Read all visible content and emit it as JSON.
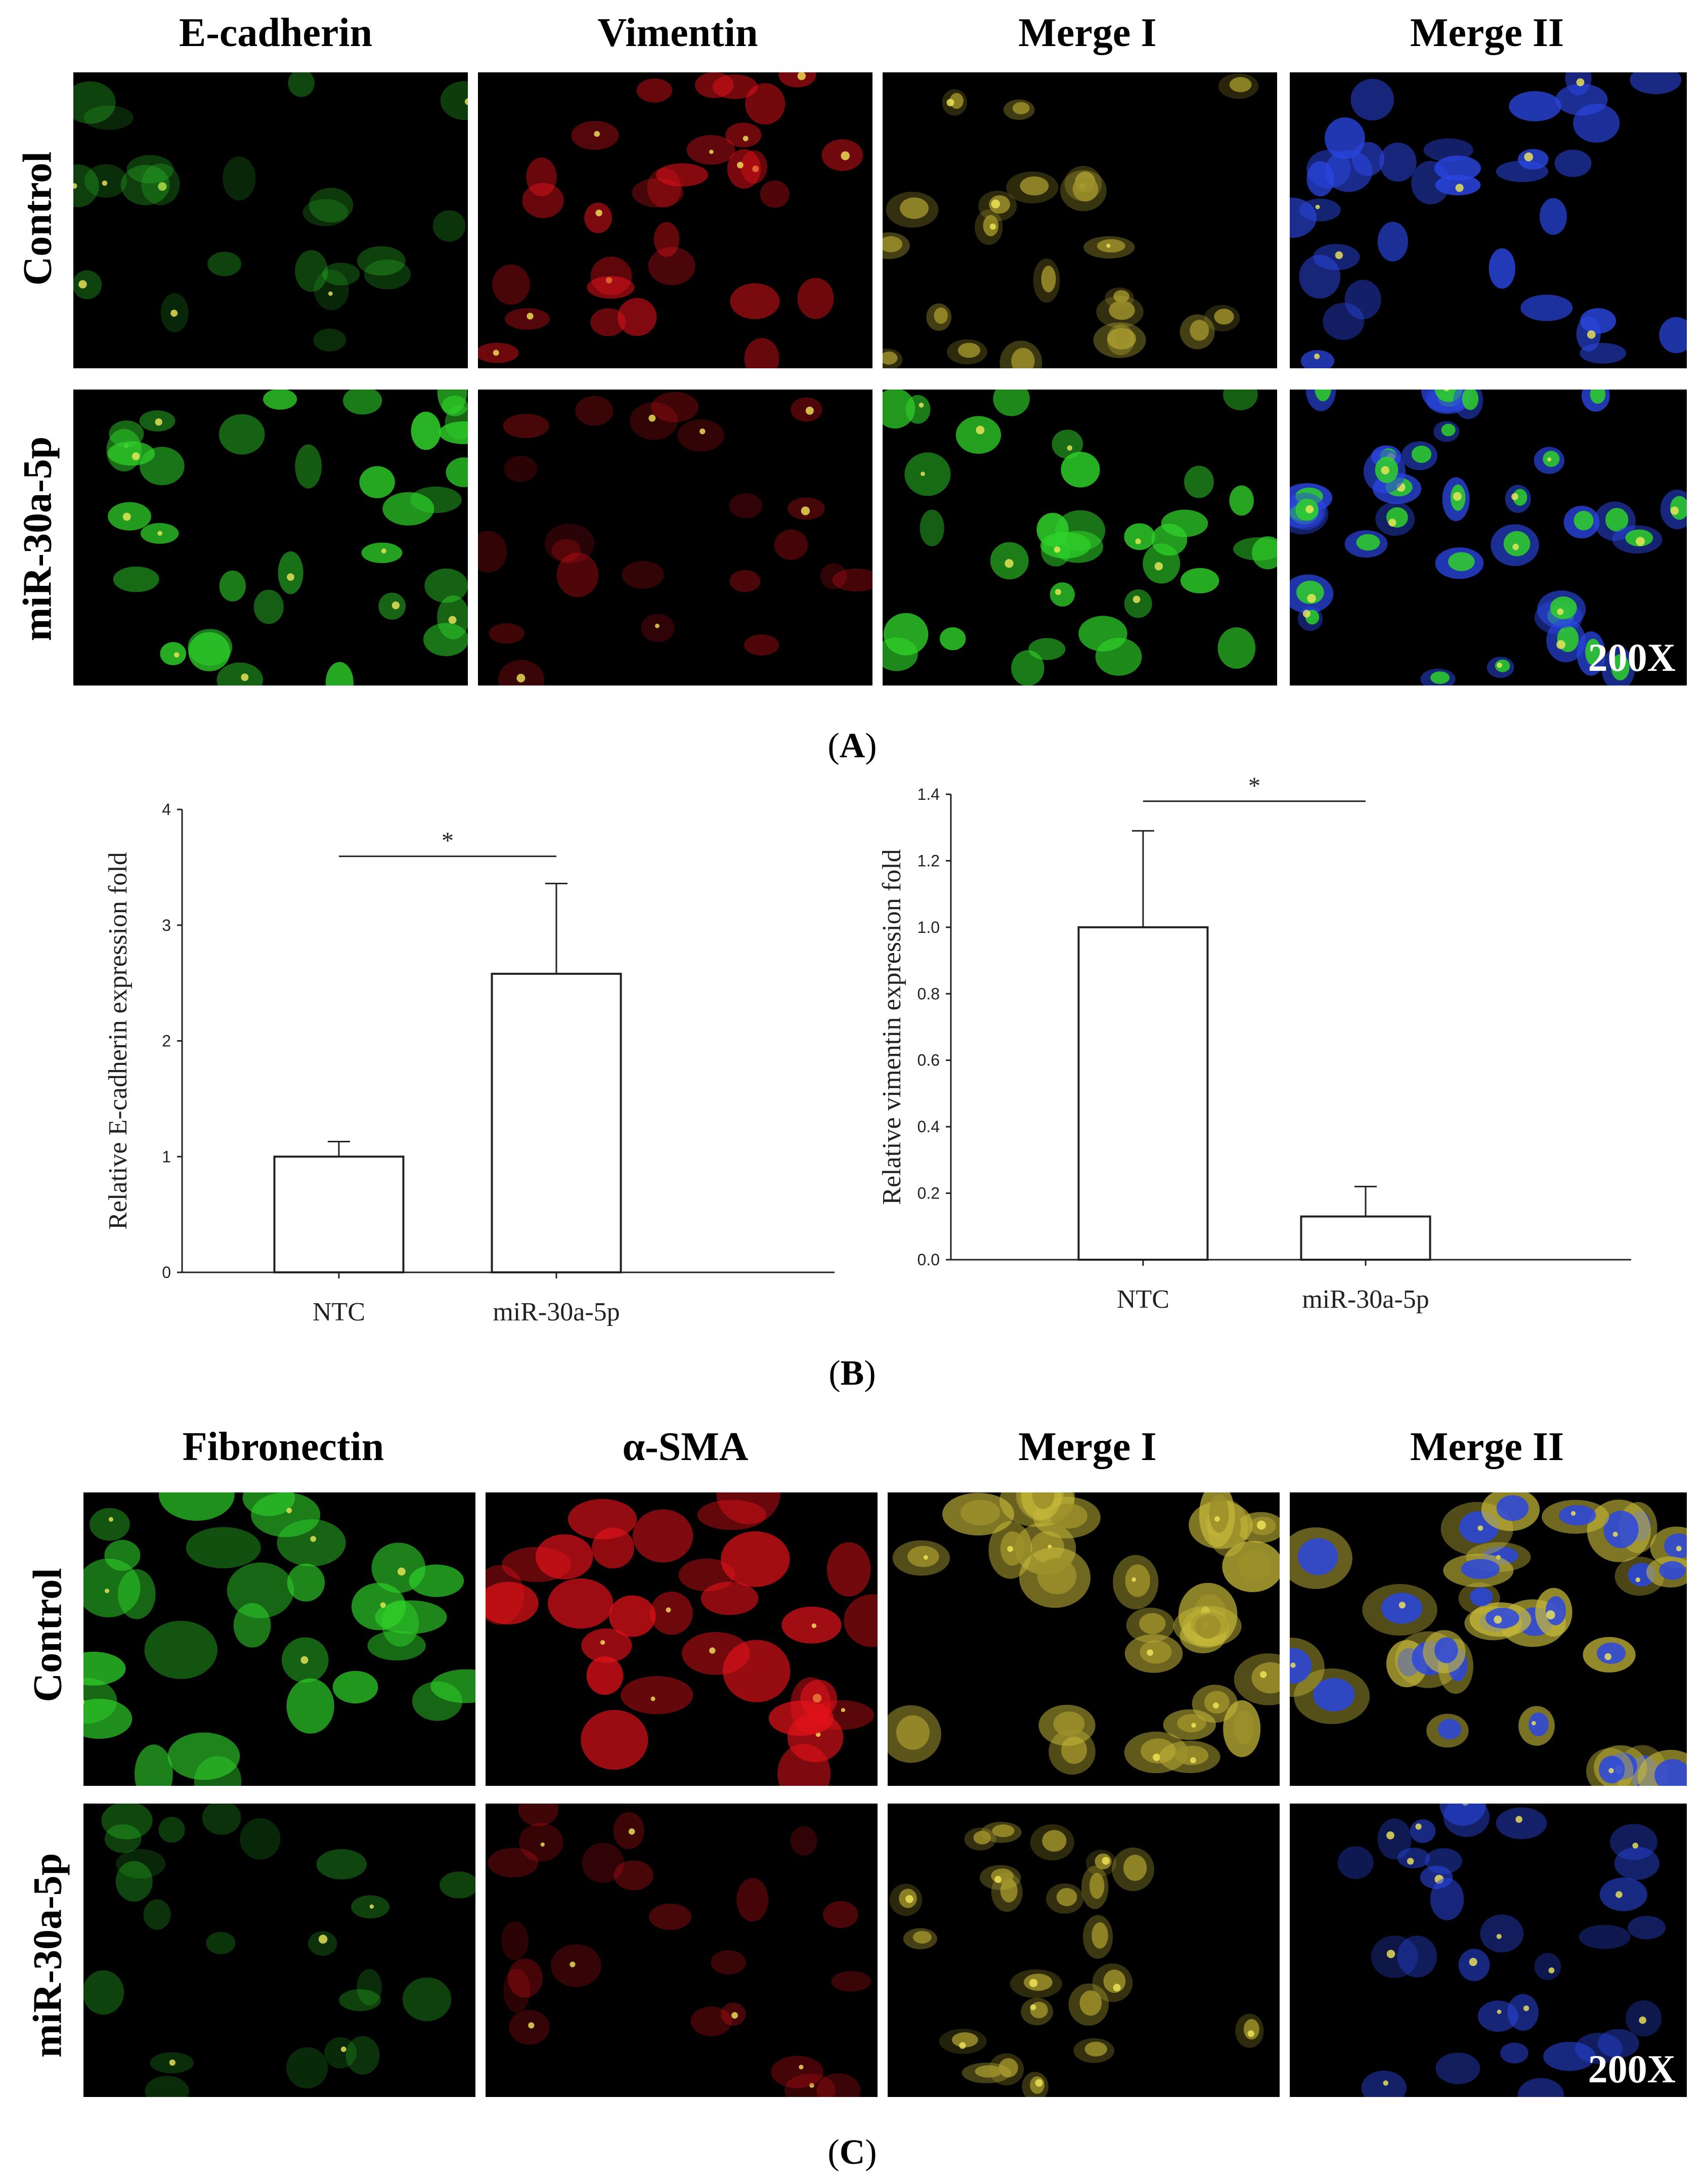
{
  "figure": {
    "magnification_label": "200X",
    "panel_A": {
      "label": "A",
      "columns": [
        "E-cadherin",
        "Vimentin",
        "Merge I",
        "Merge II"
      ],
      "rows": [
        "Control",
        "miR-30a-5p"
      ]
    },
    "panel_B": {
      "label": "B"
    },
    "panel_C": {
      "label": "C",
      "columns": [
        "Fibronectin",
        "α-SMA",
        "Merge I",
        "Merge II"
      ],
      "rows": [
        "Control",
        "miR-30a-5p"
      ]
    },
    "colors": {
      "green": "#2fd12a",
      "red": "#e4121a",
      "yellow": "#c7b93a",
      "blue": "#2a46e0",
      "background": "#000000"
    }
  },
  "chart_data": [
    {
      "type": "bar",
      "categories": [
        "NTC",
        "miR-30a-5p"
      ],
      "values": [
        1.0,
        2.58
      ],
      "error": [
        0.13,
        0.78
      ],
      "ylabel": "Relative E-cadherin  expression fold",
      "ylim": [
        0,
        4
      ],
      "yticks": [
        "0",
        "1",
        "2",
        "3",
        "4"
      ],
      "significance": {
        "between": [
          "NTC",
          "miR-30a-5p"
        ],
        "label": "*"
      }
    },
    {
      "type": "bar",
      "categories": [
        "NTC",
        "miR-30a-5p"
      ],
      "values": [
        1.0,
        0.13
      ],
      "error": [
        0.29,
        0.09
      ],
      "ylabel": "Relative vimentin  expression fold",
      "ylim": [
        0,
        1.4
      ],
      "yticks": [
        "0.0",
        "0.2",
        "0.4",
        "0.6",
        "0.8",
        "1.0",
        "1.2",
        "1.4"
      ],
      "significance": {
        "between": [
          "NTC",
          "miR-30a-5p"
        ],
        "label": "*"
      }
    }
  ]
}
